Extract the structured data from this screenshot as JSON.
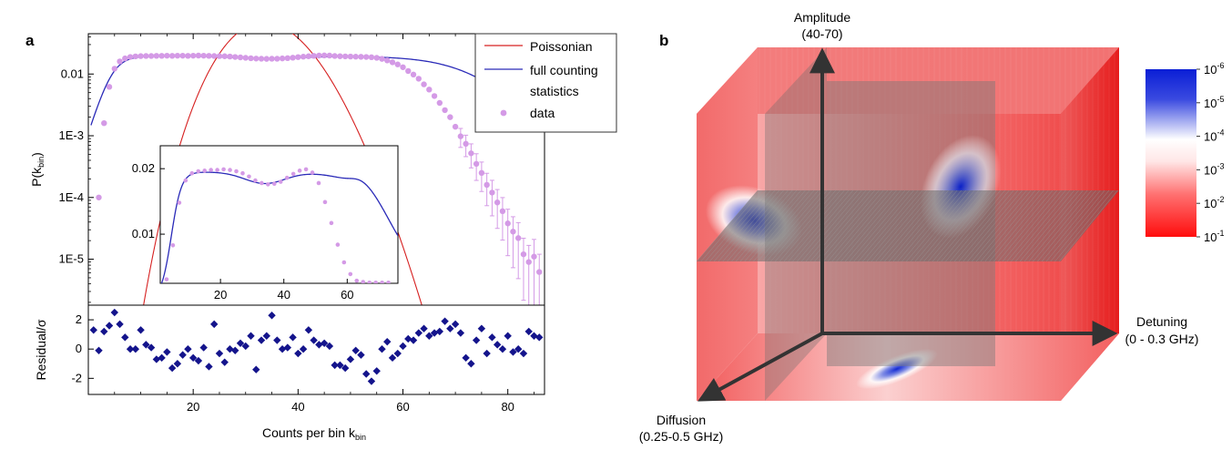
{
  "panels": {
    "a": {
      "label": "a"
    },
    "b": {
      "label": "b"
    }
  },
  "colors": {
    "poissonian": "#d62020",
    "full_counting": "#2a2ab8",
    "data_points": "#d49ae6",
    "residual_markers": "#14148c",
    "cube_red": "#f25454",
    "cube_blue": "#1530d8",
    "plane_gray": "#6e6e6e",
    "axis_arrow": "#333333"
  },
  "chart_data": [
    {
      "id": "main",
      "type": "line",
      "xlabel": "Counts per bin k",
      "xlabel_sub": "bin",
      "ylabel": "P(k",
      "ylabel_sub": "bin",
      "ylabel_close": ")",
      "yscale": "log",
      "xlim": [
        0,
        87
      ],
      "ylim": [
        1.8e-06,
        0.045
      ],
      "yticks": [
        0.01,
        0.001,
        0.0001,
        1e-05
      ],
      "ytick_labels": [
        "0.01",
        "1E-3",
        "1E-4",
        "1E-5"
      ],
      "legend_position": "top-right",
      "legend": [
        "Poissonian",
        "full counting",
        "statistics",
        "data"
      ],
      "series": [
        {
          "name": "Poissonian",
          "type": "line",
          "model": {
            "kind": "poisson",
            "mean": 34,
            "total": 1.0
          }
        },
        {
          "name": "full counting statistics",
          "type": "line",
          "model": {
            "kind": "sigmoid_plateau",
            "left_edge": 4.5,
            "left_width": 1.6,
            "right_edge": 73,
            "right_width": 5.5,
            "level": 0.0195,
            "dip_center": 34,
            "dip_depth": 0.09,
            "dip_width": 9
          }
        },
        {
          "name": "data",
          "type": "scatter",
          "with_error_bars": true,
          "x": [
            2,
            3,
            4,
            5,
            6,
            7,
            8,
            9,
            10,
            11,
            12,
            13,
            14,
            15,
            16,
            17,
            18,
            19,
            20,
            21,
            22,
            23,
            24,
            25,
            26,
            27,
            28,
            29,
            30,
            31,
            32,
            33,
            34,
            35,
            36,
            37,
            38,
            39,
            40,
            41,
            42,
            43,
            44,
            45,
            46,
            47,
            48,
            49,
            50,
            51,
            52,
            53,
            54,
            55,
            56,
            57,
            58,
            59,
            60,
            61,
            62,
            63,
            64,
            65,
            66,
            67,
            68,
            69,
            70,
            71,
            72,
            73,
            74,
            75,
            76,
            77,
            78,
            79,
            80,
            81,
            82,
            83,
            84,
            85,
            86
          ],
          "y": [
            0.0001,
            0.0016,
            0.0062,
            0.0122,
            0.016,
            0.0179,
            0.0189,
            0.0193,
            0.0195,
            0.0196,
            0.0196,
            0.0197,
            0.0197,
            0.0198,
            0.0197,
            0.0198,
            0.0198,
            0.0197,
            0.0198,
            0.0199,
            0.0198,
            0.0197,
            0.0196,
            0.0195,
            0.0194,
            0.0192,
            0.0189,
            0.0186,
            0.0183,
            0.018,
            0.0178,
            0.0177,
            0.0176,
            0.0177,
            0.0177,
            0.0179,
            0.0181,
            0.0184,
            0.0188,
            0.0191,
            0.0194,
            0.0197,
            0.0199,
            0.02,
            0.0199,
            0.0196,
            0.0194,
            0.0193,
            0.0192,
            0.0191,
            0.019,
            0.0189,
            0.0187,
            0.0183,
            0.0176,
            0.0166,
            0.0155,
            0.0143,
            0.0129,
            0.0112,
            0.0098,
            0.0084,
            0.0068,
            0.0056,
            0.0044,
            0.0034,
            0.0026,
            0.002,
            0.0014,
            0.00098,
            0.00074,
            0.00052,
            0.00035,
            0.00025,
            0.00016,
            0.00012,
            8.3e-05,
            6e-05,
            3.8e-05,
            2.8e-05,
            2.2e-05,
            1.2e-05,
            9e-06,
            1.1e-05,
            6.2e-06
          ]
        }
      ]
    },
    {
      "id": "inset",
      "type": "line",
      "xlim": [
        1,
        76
      ],
      "ylim": [
        0.0025,
        0.0235
      ],
      "xticks": [
        20,
        40,
        60
      ],
      "yticks": [
        0.01,
        0.02
      ],
      "ytick_labels": [
        "0.01",
        "0.02"
      ],
      "series": [
        {
          "name": "full counting statistics",
          "type": "line"
        },
        {
          "name": "data",
          "type": "scatter",
          "x": [
            3,
            5,
            7,
            9,
            11,
            13,
            15,
            17,
            19,
            21,
            23,
            25,
            27,
            29,
            31,
            33,
            35,
            37,
            39,
            41,
            43,
            45,
            47,
            49,
            51,
            53,
            55,
            57,
            59,
            61,
            63,
            65,
            67,
            69,
            71,
            73
          ],
          "y": [
            0.0031,
            0.0083,
            0.0148,
            0.0182,
            0.0193,
            0.0196,
            0.0197,
            0.0198,
            0.0198,
            0.0199,
            0.0198,
            0.0196,
            0.0193,
            0.0188,
            0.0182,
            0.0178,
            0.0176,
            0.0177,
            0.018,
            0.0186,
            0.0192,
            0.0197,
            0.0199,
            0.0194,
            0.0178,
            0.0149,
            0.0117,
            0.0084,
            0.0057,
            0.0039,
            0.0029,
            0.0027,
            0.0026,
            0.0026,
            0.0026,
            0.0026
          ]
        }
      ]
    },
    {
      "id": "residual",
      "type": "scatter",
      "xlim": [
        0,
        87
      ],
      "ylim": [
        -3.1,
        3.0
      ],
      "xticks": [
        20,
        40,
        60,
        80
      ],
      "yticks": [
        2,
        0,
        -2
      ],
      "ylabel": "Residual/σ",
      "series": [
        {
          "name": "residual",
          "marker": "diamond",
          "x": [
            1,
            2,
            3,
            4,
            5,
            6,
            7,
            8,
            9,
            10,
            11,
            12,
            13,
            14,
            15,
            16,
            17,
            18,
            19,
            20,
            21,
            22,
            23,
            24,
            25,
            26,
            27,
            28,
            29,
            30,
            31,
            32,
            33,
            34,
            35,
            36,
            37,
            38,
            39,
            40,
            41,
            42,
            43,
            44,
            45,
            46,
            47,
            48,
            49,
            50,
            51,
            52,
            53,
            54,
            55,
            56,
            57,
            58,
            59,
            60,
            61,
            62,
            63,
            64,
            65,
            66,
            67,
            68,
            69,
            70,
            71,
            72,
            73,
            74,
            75,
            76,
            77,
            78,
            79,
            80,
            81,
            82,
            83,
            84,
            85,
            86
          ],
          "y": [
            1.3,
            -0.1,
            1.2,
            1.6,
            2.5,
            1.7,
            0.8,
            0.0,
            0.0,
            1.3,
            0.3,
            0.1,
            -0.7,
            -0.6,
            -0.2,
            -1.3,
            -1.0,
            -0.4,
            0.0,
            -0.6,
            -0.8,
            0.1,
            -1.2,
            1.7,
            -0.3,
            -0.9,
            0.0,
            -0.1,
            0.4,
            0.2,
            0.9,
            -1.4,
            0.6,
            0.9,
            2.3,
            0.6,
            0.0,
            0.1,
            0.8,
            -0.3,
            0.0,
            1.3,
            0.6,
            0.3,
            0.4,
            0.2,
            -1.1,
            -1.1,
            -1.3,
            -0.7,
            -0.1,
            -0.4,
            -1.7,
            -2.2,
            -1.5,
            0.0,
            0.5,
            -0.6,
            -0.3,
            0.2,
            0.7,
            0.6,
            1.1,
            1.4,
            0.9,
            1.1,
            1.2,
            1.9,
            1.4,
            1.7,
            1.1,
            -0.6,
            -1.0,
            0.6,
            1.4,
            -0.3,
            0.8,
            0.3,
            0.0,
            0.9,
            -0.2,
            0.0,
            -0.3,
            1.2,
            0.9,
            0.8
          ]
        }
      ]
    },
    {
      "id": "cube",
      "type": "heatmap",
      "axes": {
        "vertical": {
          "label": "Amplitude",
          "range_label": "(40-70)"
        },
        "horizontal": {
          "label": "Detuning",
          "range_label": "(0 - 0.3 GHz)"
        },
        "depth": {
          "label": "Diffusion",
          "range_label": "(0.25-0.5 GHz)"
        }
      },
      "colorbar": {
        "tick_labels": [
          "10",
          "10",
          "10",
          "10",
          "10",
          "10"
        ],
        "tick_exponents": [
          "-6",
          "-5",
          "-4",
          "-3",
          "-2",
          "-1"
        ],
        "colors": [
          "#0a1ed6",
          "#ffffff",
          "#ff1212"
        ]
      }
    }
  ]
}
